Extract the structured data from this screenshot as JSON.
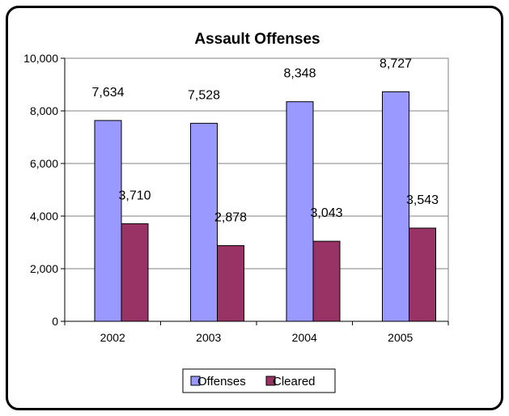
{
  "chart_data": {
    "type": "bar",
    "title": "Assault Offenses",
    "xlabel": "",
    "ylabel": "",
    "categories": [
      "2002",
      "2003",
      "2004",
      "2005"
    ],
    "series": [
      {
        "name": "Offenses",
        "values": [
          7634,
          7528,
          8348,
          8727
        ],
        "labels": [
          "7,634",
          "7,528",
          "8,348",
          "8,727"
        ],
        "color": "#9999FF"
      },
      {
        "name": "Cleared",
        "values": [
          3710,
          2878,
          3043,
          3543
        ],
        "labels": [
          "3,710",
          "2,878",
          "3,043",
          "3,543"
        ],
        "color": "#993366"
      }
    ],
    "ylim": [
      0,
      10000
    ],
    "yticks": [
      0,
      2000,
      4000,
      6000,
      8000,
      10000
    ],
    "ytick_labels": [
      "0",
      "2,000",
      "4,000",
      "6,000",
      "8,000",
      "10,000"
    ],
    "grid": true,
    "legend_position": "bottom"
  }
}
